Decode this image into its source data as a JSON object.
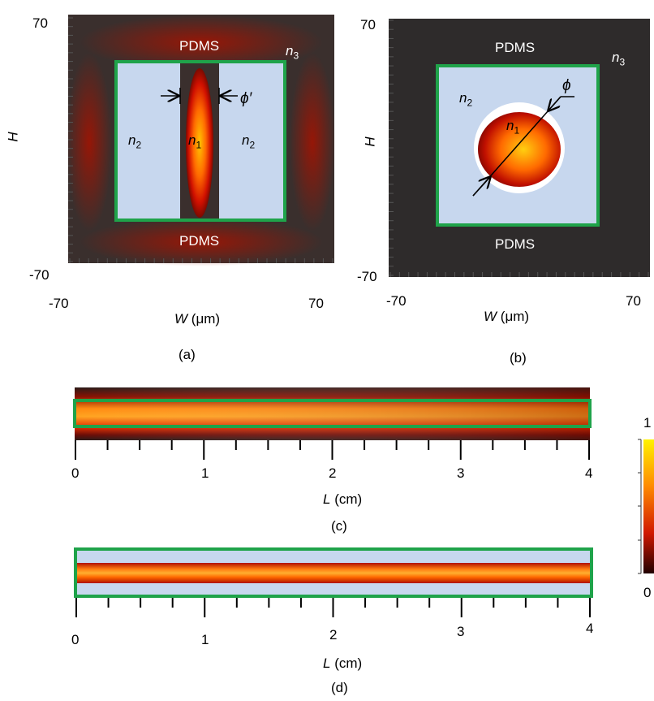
{
  "panels": {
    "a": {
      "caption": "(a)",
      "y_top": "70",
      "y_bottom": "-70",
      "x_left": "-70",
      "x_right": "70",
      "y_axis_label": "H",
      "x_axis_var": "W",
      "x_axis_unit": "(μm)",
      "pdms_top": "PDMS",
      "pdms_bottom": "PDMS",
      "n1": "n",
      "n1_sub": "1",
      "n2": "n",
      "n2_sub": "2",
      "n3": "n",
      "n3_sub": "3",
      "phi_prime": "ϕ′"
    },
    "b": {
      "caption": "(b)",
      "y_top": "70",
      "y_bottom": "-70",
      "x_left": "-70",
      "x_right": "70",
      "y_axis_label": "H",
      "x_axis_var": "W",
      "x_axis_unit": "(μm)",
      "pdms_top": "PDMS",
      "pdms_bottom": "PDMS",
      "n1": "n",
      "n1_sub": "1",
      "n2": "n",
      "n2_sub": "2",
      "n3": "n",
      "n3_sub": "3",
      "phi": "ϕ"
    },
    "c": {
      "caption": "(c)",
      "x_ticks": [
        "0",
        "1",
        "2",
        "3",
        "4"
      ],
      "x_axis_var": "L",
      "x_axis_unit": "(cm)"
    },
    "d": {
      "caption": "(d)",
      "x_ticks": [
        "0",
        "1",
        "2",
        "3",
        "4"
      ],
      "x_axis_var": "L",
      "x_axis_unit": "(cm)"
    }
  },
  "colorbar": {
    "max_label": "1",
    "min_label": "0"
  },
  "colors": {
    "frame_green": "#1fa34a",
    "cladding_light_blue": "#c7d7ee",
    "background_dark": "#2e2b2b"
  }
}
